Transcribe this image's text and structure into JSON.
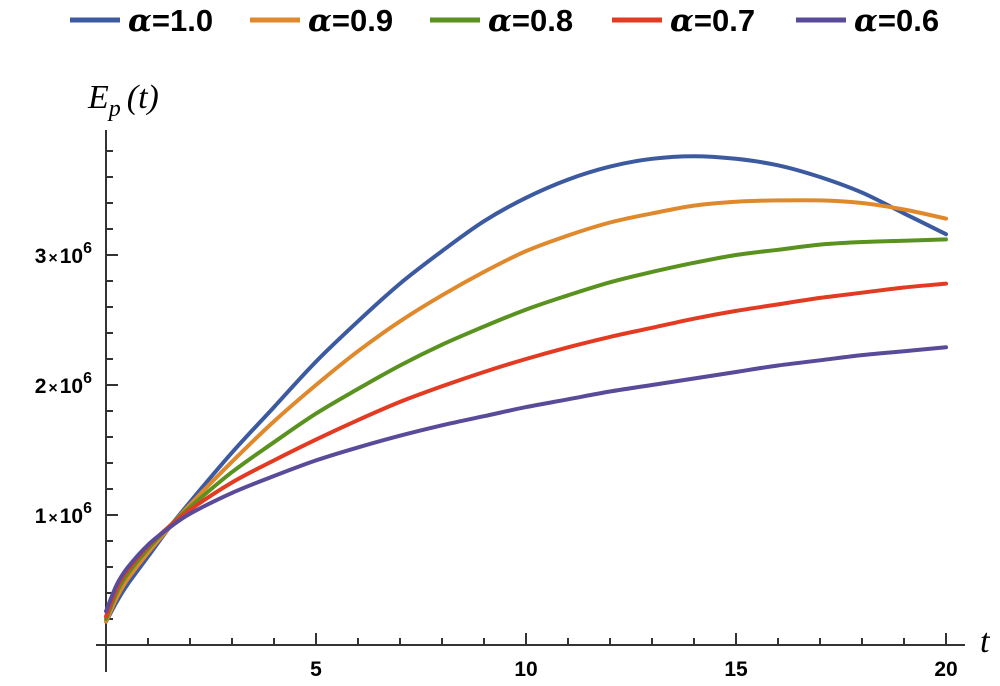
{
  "chart_data": {
    "type": "line",
    "xlabel": "t",
    "ylabel": "E_p (t)",
    "ylabel_main": "E",
    "ylabel_sub": "p",
    "ylabel_tail": "(t)",
    "xlim": [
      0,
      20
    ],
    "ylim": [
      0,
      3800000
    ],
    "x_ticks": [
      5,
      10,
      15,
      20
    ],
    "x_tick_labels": [
      "5",
      "10",
      "15",
      "20"
    ],
    "y_ticks": [
      1000000,
      2000000,
      3000000
    ],
    "y_tick_labels": [
      {
        "mantissa": "1",
        "times": "×",
        "base": "10",
        "exponent": "6"
      },
      {
        "mantissa": "2",
        "times": "×",
        "base": "10",
        "exponent": "6"
      },
      {
        "mantissa": "3",
        "times": "×",
        "base": "10",
        "exponent": "6"
      }
    ],
    "legend_position": "top",
    "x": [
      0,
      0.25,
      0.5,
      1,
      1.5,
      2,
      3,
      4,
      5,
      6,
      7,
      8,
      9,
      10,
      11,
      12,
      13,
      14,
      15,
      16,
      17,
      18,
      19,
      20
    ],
    "series": [
      {
        "symbol": "α",
        "eq": "=1.0",
        "color": "#3b5aa0",
        "values": [
          180000,
          330000,
          460000,
          680000,
          900000,
          1100000,
          1480000,
          1830000,
          2180000,
          2490000,
          2780000,
          3030000,
          3260000,
          3440000,
          3580000,
          3680000,
          3740000,
          3760000,
          3740000,
          3690000,
          3600000,
          3480000,
          3320000,
          3160000
        ]
      },
      {
        "symbol": "α",
        "eq": "=0.9",
        "color": "#e0892c",
        "values": [
          180000,
          360000,
          500000,
          710000,
          900000,
          1080000,
          1410000,
          1720000,
          2000000,
          2260000,
          2490000,
          2690000,
          2870000,
          3030000,
          3150000,
          3250000,
          3320000,
          3380000,
          3410000,
          3420000,
          3420000,
          3400000,
          3350000,
          3280000
        ]
      },
      {
        "symbol": "α",
        "eq": "=0.8",
        "color": "#5a9220",
        "values": [
          200000,
          400000,
          540000,
          740000,
          910000,
          1060000,
          1330000,
          1560000,
          1780000,
          1970000,
          2150000,
          2310000,
          2450000,
          2580000,
          2690000,
          2790000,
          2870000,
          2940000,
          3000000,
          3040000,
          3080000,
          3100000,
          3110000,
          3120000
        ]
      },
      {
        "symbol": "α",
        "eq": "=0.7",
        "color": "#e23b22",
        "values": [
          220000,
          430000,
          570000,
          760000,
          910000,
          1040000,
          1250000,
          1420000,
          1580000,
          1730000,
          1870000,
          1990000,
          2100000,
          2200000,
          2290000,
          2370000,
          2440000,
          2510000,
          2570000,
          2620000,
          2670000,
          2710000,
          2750000,
          2780000
        ]
      },
      {
        "symbol": "α",
        "eq": "=0.6",
        "color": "#5a4a9a",
        "values": [
          260000,
          460000,
          590000,
          770000,
          900000,
          1010000,
          1170000,
          1300000,
          1420000,
          1520000,
          1610000,
          1690000,
          1760000,
          1830000,
          1890000,
          1950000,
          2000000,
          2050000,
          2100000,
          2150000,
          2190000,
          2230000,
          2260000,
          2290000
        ]
      }
    ]
  }
}
